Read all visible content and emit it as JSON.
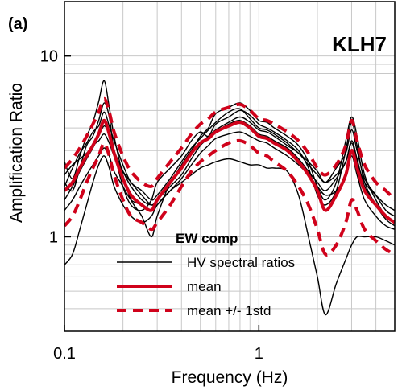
{
  "panel_label": "(a)",
  "station": "KLH7",
  "chart_data": {
    "type": "line",
    "xlabel": "Frequency (Hz)",
    "ylabel": "Amplification Ratio",
    "xscale": "log",
    "yscale": "log",
    "xlim": [
      0.1,
      5
    ],
    "ylim": [
      0.3,
      20
    ],
    "xticks": [
      {
        "value": 0.1,
        "label": "0.1"
      },
      {
        "value": 1,
        "label": "1"
      }
    ],
    "yticks": [
      {
        "value": 1,
        "label": "1"
      },
      {
        "value": 10,
        "label": "10"
      }
    ],
    "grid": true,
    "legend": {
      "title": "EW comp",
      "position": "bottom-center",
      "entries": [
        {
          "label": "HV spectral ratios",
          "style": "solid-thin",
          "color": "#000000"
        },
        {
          "label": "mean",
          "style": "solid-thick",
          "color": "#d0021b"
        },
        {
          "label": "mean +/- 1std",
          "style": "dashed-thick",
          "color": "#d0021b"
        }
      ]
    },
    "x": [
      0.1,
      0.11,
      0.12,
      0.13,
      0.14,
      0.15,
      0.16,
      0.17,
      0.18,
      0.2,
      0.22,
      0.25,
      0.28,
      0.3,
      0.35,
      0.4,
      0.45,
      0.5,
      0.55,
      0.6,
      0.7,
      0.8,
      0.9,
      1.0,
      1.1,
      1.2,
      1.4,
      1.6,
      1.8,
      2.0,
      2.2,
      2.5,
      2.8,
      3.0,
      3.2,
      3.5,
      4.0,
      4.5,
      5.0
    ],
    "series": [
      {
        "color": "#000000",
        "width": 1.4,
        "dash": "none",
        "values": [
          2.6,
          2.1,
          2.8,
          3.6,
          4.3,
          5.6,
          7.3,
          5.2,
          3.6,
          2.2,
          1.6,
          1.3,
          1.0,
          1.3,
          2.0,
          2.4,
          3.0,
          3.6,
          4.0,
          4.8,
          5.2,
          5.5,
          5.0,
          4.4,
          4.3,
          4.0,
          3.6,
          3.2,
          2.6,
          1.9,
          1.6,
          2.0,
          3.4,
          4.6,
          3.6,
          2.2,
          1.6,
          1.3,
          1.2
        ]
      },
      {
        "color": "#000000",
        "width": 1.4,
        "dash": "none",
        "values": [
          2.0,
          1.8,
          2.4,
          3.2,
          3.6,
          4.4,
          5.5,
          4.6,
          3.0,
          1.9,
          1.5,
          1.4,
          1.6,
          2.0,
          2.4,
          2.8,
          3.4,
          3.8,
          3.6,
          4.2,
          4.6,
          5.0,
          4.7,
          4.2,
          4.0,
          3.8,
          3.4,
          3.0,
          2.4,
          1.7,
          1.5,
          1.8,
          3.0,
          4.3,
          3.2,
          2.0,
          1.5,
          1.25,
          1.15
        ]
      },
      {
        "color": "#000000",
        "width": 1.4,
        "dash": "none",
        "values": [
          1.9,
          2.4,
          2.9,
          3.3,
          3.8,
          4.1,
          4.9,
          4.1,
          3.4,
          2.5,
          2.0,
          1.8,
          1.6,
          1.7,
          2.1,
          2.6,
          3.1,
          3.5,
          3.9,
          4.3,
          4.9,
          5.1,
          4.5,
          4.0,
          3.9,
          3.7,
          3.3,
          2.9,
          2.6,
          2.3,
          2.0,
          2.4,
          2.9,
          3.9,
          3.0,
          2.1,
          1.7,
          1.4,
          1.3
        ]
      },
      {
        "color": "#000000",
        "width": 1.4,
        "dash": "none",
        "values": [
          1.6,
          1.9,
          2.3,
          2.7,
          3.1,
          3.6,
          4.1,
          3.7,
          3.0,
          2.3,
          1.9,
          1.6,
          1.5,
          1.6,
          1.9,
          2.2,
          2.7,
          3.2,
          3.5,
          3.8,
          4.2,
          4.4,
          4.1,
          3.7,
          3.6,
          3.4,
          3.1,
          2.7,
          2.3,
          2.0,
          1.8,
          2.1,
          2.6,
          3.4,
          2.7,
          1.9,
          1.5,
          1.3,
          1.2
        ]
      },
      {
        "color": "#000000",
        "width": 1.4,
        "dash": "none",
        "values": [
          1.4,
          1.6,
          1.9,
          2.2,
          2.5,
          2.8,
          3.1,
          2.8,
          2.3,
          1.9,
          1.6,
          1.5,
          1.4,
          1.5,
          1.8,
          2.1,
          2.5,
          2.9,
          3.2,
          3.5,
          3.7,
          3.8,
          3.6,
          3.4,
          3.3,
          3.1,
          2.8,
          2.5,
          2.2,
          1.9,
          1.7,
          1.8,
          2.2,
          2.8,
          2.2,
          1.6,
          1.3,
          1.15,
          1.1
        ]
      },
      {
        "color": "#000000",
        "width": 1.4,
        "dash": "none",
        "values": [
          0.7,
          0.8,
          1.1,
          1.5,
          2.0,
          2.5,
          2.8,
          2.4,
          1.9,
          1.5,
          1.3,
          1.2,
          1.3,
          1.5,
          1.8,
          2.0,
          2.2,
          2.4,
          2.5,
          2.6,
          2.7,
          2.6,
          2.5,
          2.5,
          2.4,
          2.4,
          2.3,
          1.7,
          1.0,
          0.6,
          0.37,
          0.55,
          0.75,
          0.9,
          1.0,
          1.0,
          1.0,
          0.95,
          0.9
        ]
      },
      {
        "color": "#000000",
        "width": 1.4,
        "dash": "none",
        "values": [
          2.2,
          2.5,
          2.7,
          2.9,
          3.2,
          3.4,
          3.7,
          3.3,
          2.8,
          2.3,
          2.0,
          1.7,
          1.5,
          1.6,
          2.0,
          2.5,
          3.0,
          3.3,
          3.6,
          3.9,
          4.3,
          4.6,
          4.3,
          3.9,
          3.8,
          3.6,
          3.2,
          2.9,
          2.5,
          2.2,
          2.0,
          2.2,
          2.6,
          3.3,
          2.6,
          2.0,
          1.7,
          1.5,
          1.4
        ]
      },
      {
        "color": "#d0021b",
        "width": 4.0,
        "dash": "none",
        "values": [
          1.8,
          2.0,
          2.4,
          2.8,
          3.2,
          3.7,
          4.4,
          3.7,
          2.9,
          2.1,
          1.7,
          1.5,
          1.4,
          1.6,
          2.0,
          2.4,
          2.9,
          3.3,
          3.5,
          3.8,
          4.1,
          4.3,
          4.0,
          3.6,
          3.5,
          3.3,
          3.0,
          2.6,
          2.2,
          1.8,
          1.4,
          1.7,
          2.2,
          3.0,
          2.4,
          1.8,
          1.5,
          1.3,
          1.2
        ]
      },
      {
        "color": "#d0021b",
        "width": 4.0,
        "dash": "12,8",
        "values": [
          2.4,
          2.7,
          3.1,
          3.6,
          4.2,
          4.9,
          5.8,
          4.9,
          3.8,
          2.8,
          2.3,
          2.0,
          1.9,
          2.1,
          2.6,
          3.1,
          3.7,
          4.2,
          4.5,
          4.9,
          5.2,
          5.4,
          5.0,
          4.5,
          4.4,
          4.2,
          3.8,
          3.4,
          2.9,
          2.4,
          2.2,
          2.5,
          3.2,
          4.4,
          3.4,
          2.5,
          2.0,
          1.8,
          1.6
        ]
      },
      {
        "color": "#d0021b",
        "width": 4.0,
        "dash": "12,8",
        "values": [
          1.15,
          1.3,
          1.6,
          2.0,
          2.4,
          2.8,
          3.3,
          2.8,
          2.2,
          1.6,
          1.3,
          1.2,
          1.1,
          1.2,
          1.5,
          1.9,
          2.3,
          2.6,
          2.8,
          3.0,
          3.3,
          3.4,
          3.2,
          2.9,
          2.8,
          2.6,
          2.3,
          1.9,
          1.5,
          1.1,
          0.8,
          0.9,
          1.2,
          1.6,
          1.4,
          1.1,
          0.95,
          0.85,
          0.8
        ]
      }
    ]
  }
}
